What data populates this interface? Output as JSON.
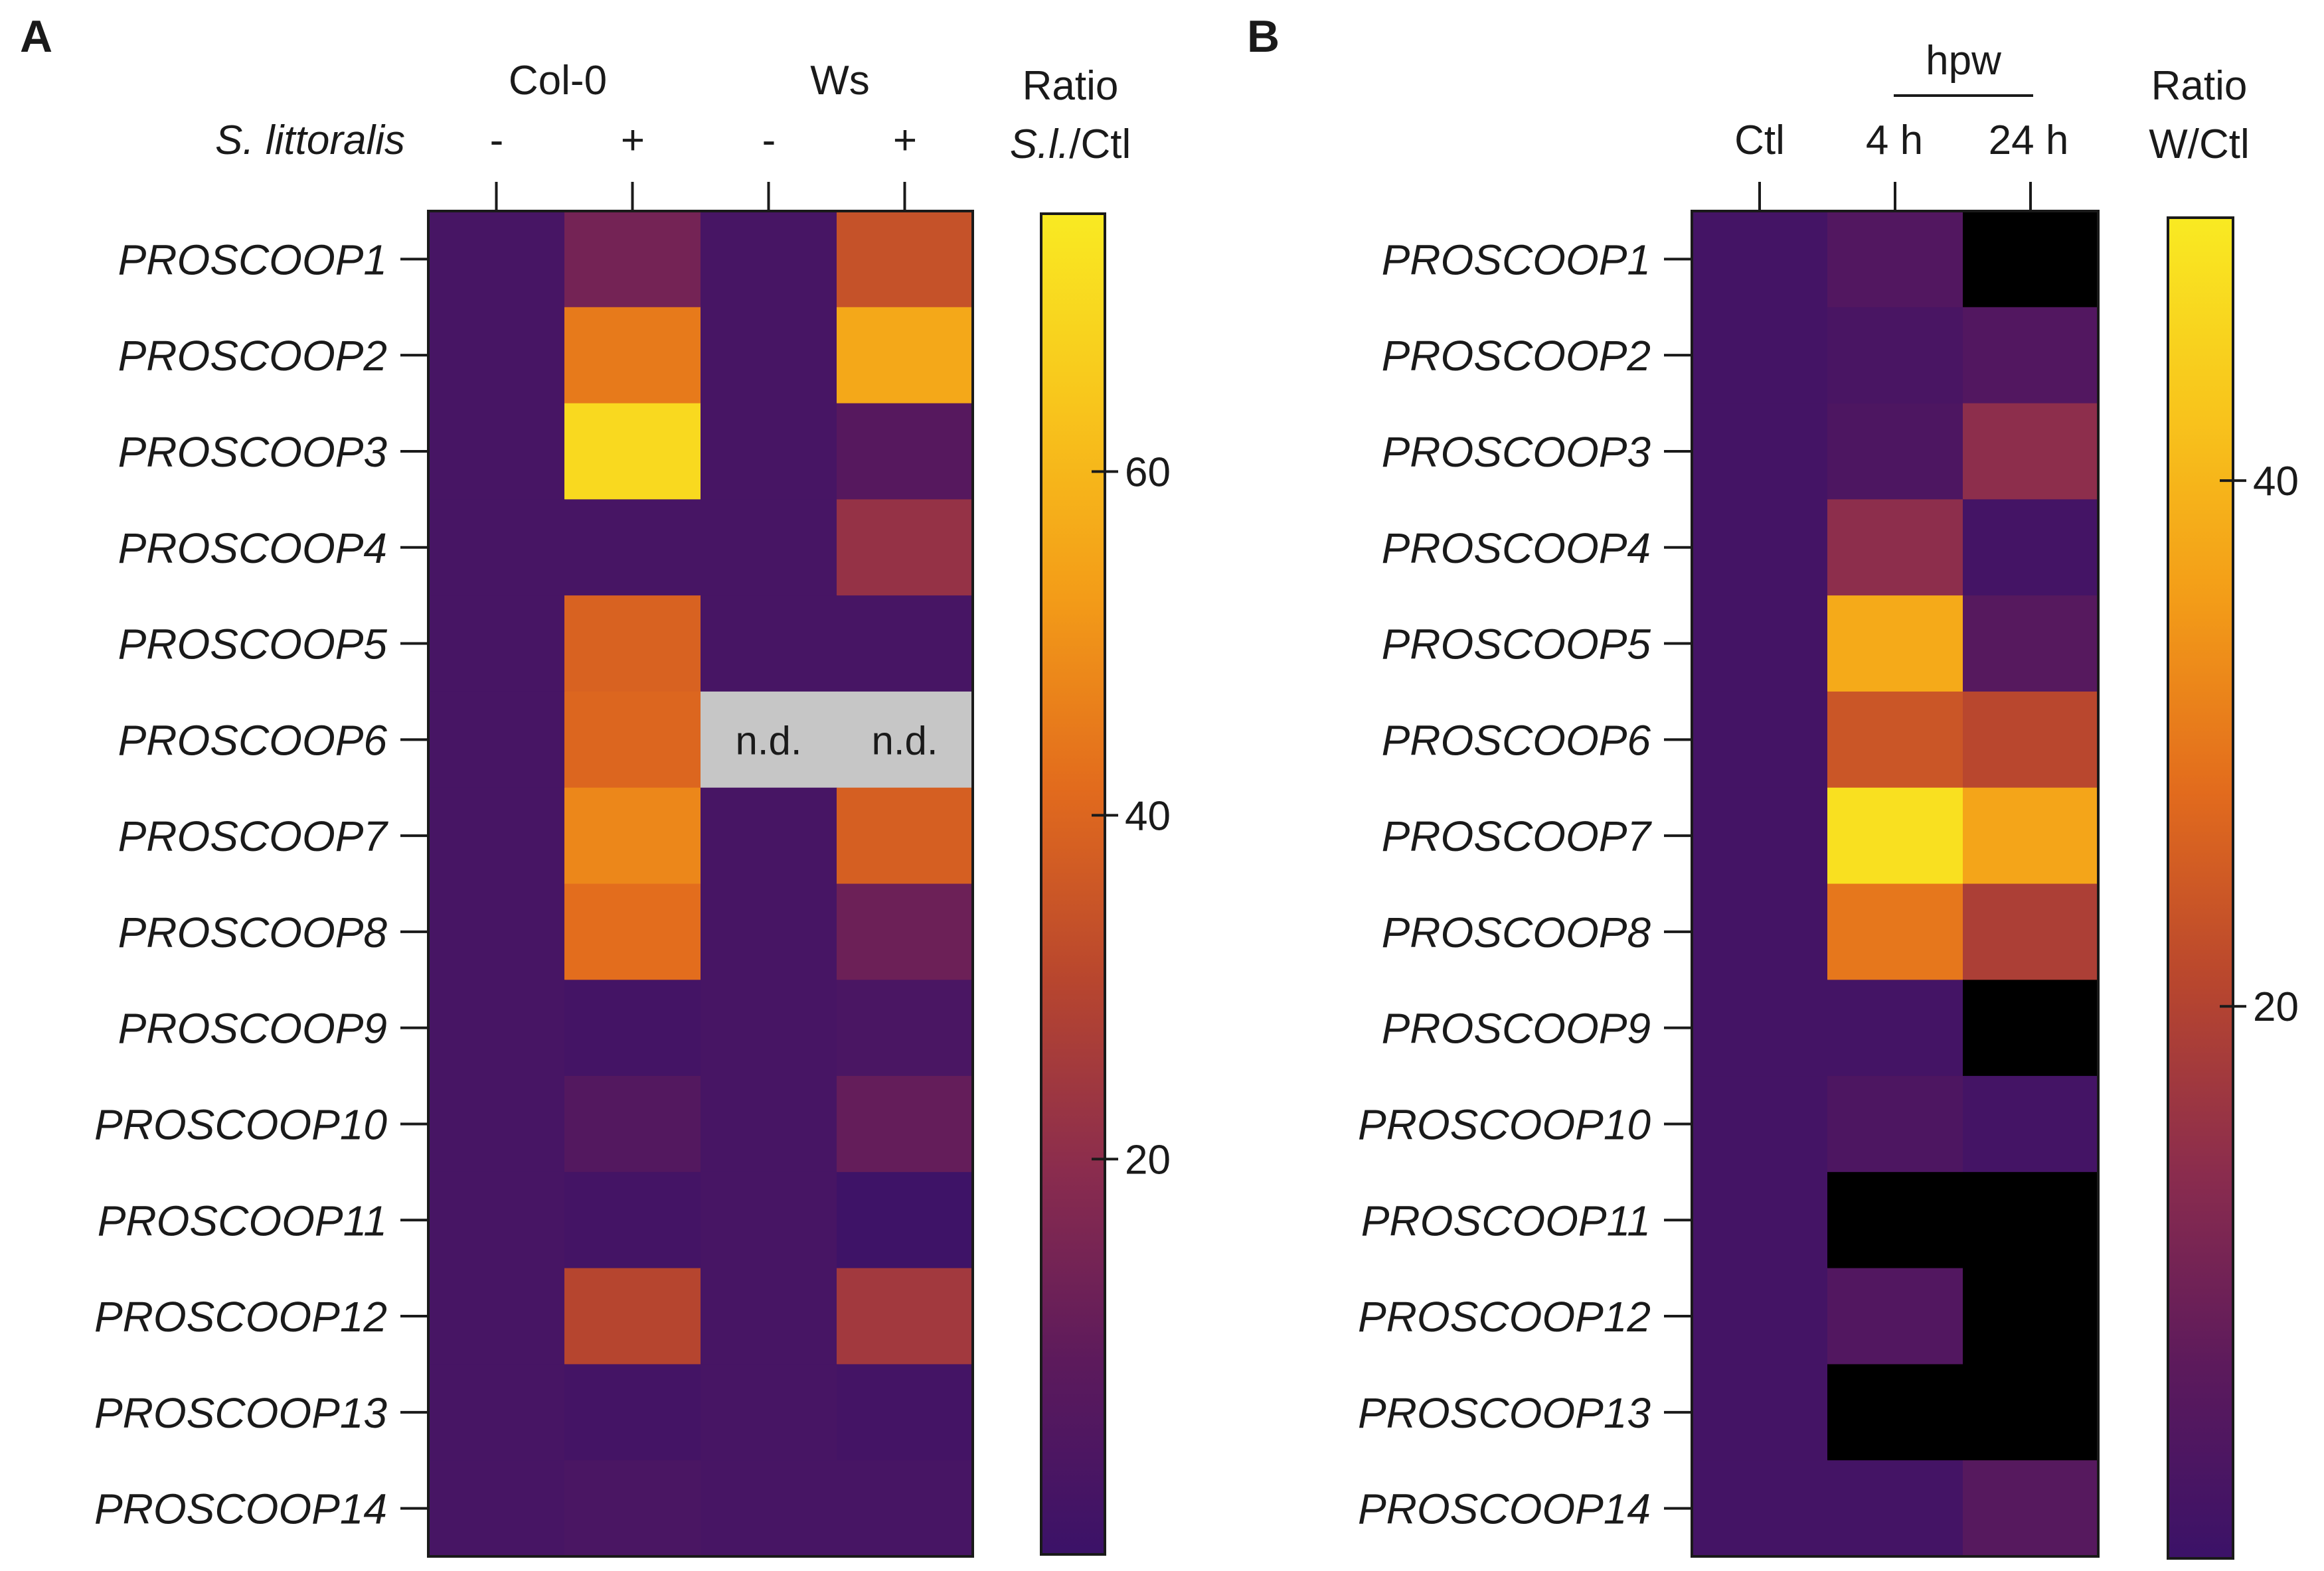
{
  "chart_data": [
    {
      "type": "heatmap",
      "panel": "A",
      "column_group_labels": [
        "Col-0",
        "Ws"
      ],
      "row_factor_label": "S. littoralis",
      "columns": [
        "-",
        "+",
        "-",
        "+"
      ],
      "rows": [
        "PROSCOOP1",
        "PROSCOOP2",
        "PROSCOOP3",
        "PROSCOOP4",
        "PROSCOOP5",
        "PROSCOOP6",
        "PROSCOOP7",
        "PROSCOOP8",
        "PROSCOOP9",
        "PROSCOOP10",
        "PROSCOOP11",
        "PROSCOOP12",
        "PROSCOOP13",
        "PROSCOOP14"
      ],
      "values": [
        [
          1,
          14,
          1,
          34
        ],
        [
          1,
          45,
          1,
          56
        ],
        [
          1,
          70,
          1,
          6
        ],
        [
          1,
          1,
          1,
          22
        ],
        [
          1,
          39,
          1,
          1
        ],
        [
          1,
          40,
          null,
          null
        ],
        [
          1,
          48,
          1,
          38
        ],
        [
          1,
          42,
          1,
          12
        ],
        [
          1,
          0,
          1,
          2
        ],
        [
          1,
          5,
          1,
          10
        ],
        [
          1,
          0,
          1,
          -2
        ],
        [
          1,
          30,
          1,
          25
        ],
        [
          1,
          0,
          1,
          0
        ],
        [
          1,
          2,
          1,
          1
        ]
      ],
      "missing_label": "n.d.",
      "colorbar": {
        "title_line1": "Ratio",
        "title_line2_italic": "S.l.",
        "title_line2_rest": "/Ctl",
        "ticks": [
          "20",
          "40",
          "60"
        ],
        "tick_values": [
          20,
          40,
          60
        ],
        "range": [
          -3,
          75
        ]
      }
    },
    {
      "type": "heatmap",
      "panel": "B",
      "column_group_label": "hpw",
      "columns": [
        "Ctl",
        "4 h",
        "24 h"
      ],
      "rows": [
        "PROSCOOP1",
        "PROSCOOP2",
        "PROSCOOP3",
        "PROSCOOP4",
        "PROSCOOP5",
        "PROSCOOP6",
        "PROSCOOP7",
        "PROSCOOP8",
        "PROSCOOP9",
        "PROSCOOP10",
        "PROSCOOP11",
        "PROSCOOP12",
        "PROSCOOP13",
        "PROSCOOP14"
      ],
      "values": [
        [
          1,
          4,
          -5
        ],
        [
          1,
          2,
          4
        ],
        [
          1,
          3,
          14
        ],
        [
          1,
          14,
          1
        ],
        [
          1,
          38,
          5
        ],
        [
          1,
          24,
          21
        ],
        [
          1,
          48,
          37
        ],
        [
          1,
          30,
          19
        ],
        [
          1,
          1,
          -5
        ],
        [
          1,
          3,
          1
        ],
        [
          1,
          -5,
          -5
        ],
        [
          1,
          4,
          -5
        ],
        [
          1,
          -5,
          -5
        ],
        [
          1,
          1,
          5
        ]
      ],
      "colorbar": {
        "title_line1": "Ratio",
        "title_line2": "W/Ctl",
        "ticks": [
          "20",
          "40"
        ],
        "tick_values": [
          20,
          40
        ],
        "range": [
          -1,
          50
        ]
      }
    }
  ],
  "colors": {
    "colormap": [
      "#3b1268",
      "#5c1a5c",
      "#8a2c4e",
      "#b8462e",
      "#e26b1d",
      "#f39c18",
      "#f8c51c",
      "#f9ea22"
    ],
    "missing": "#c6c6c6",
    "below_min": "#000000"
  }
}
